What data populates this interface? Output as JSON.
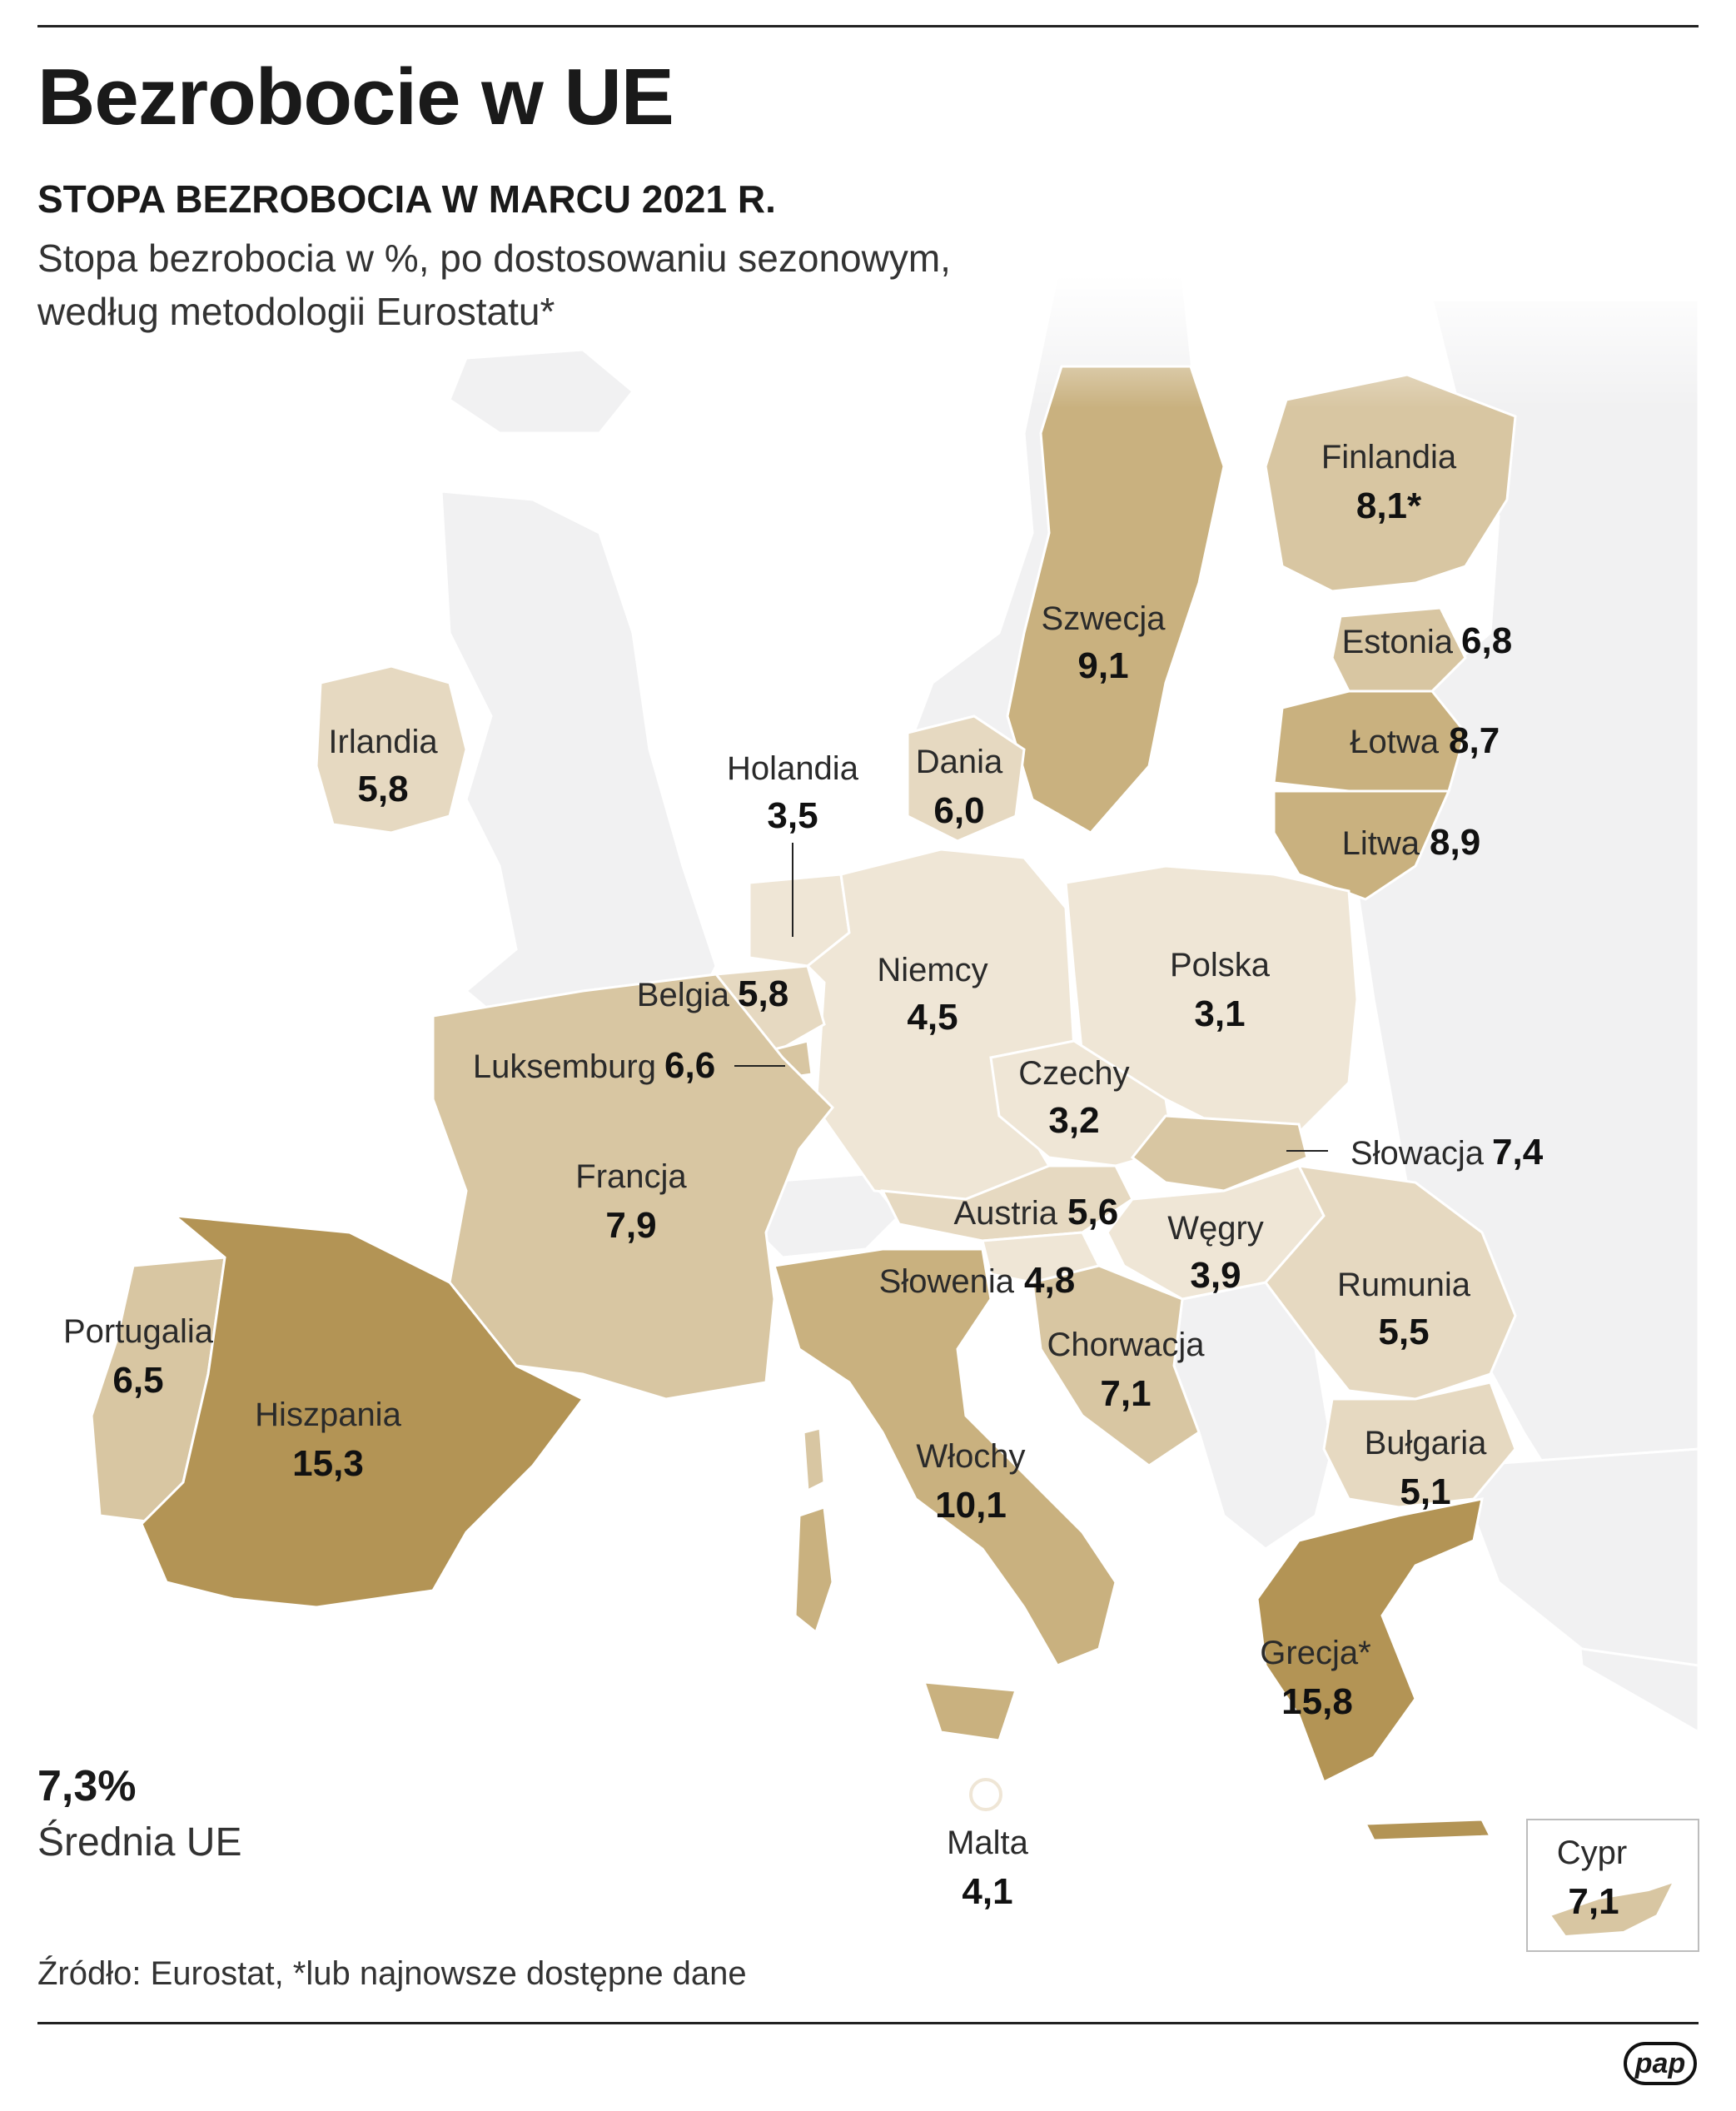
{
  "header": {
    "title": "Bezrobocie w UE",
    "subtitle": "STOPA BEZROBOCIA W MARCU 2021 R.",
    "description_line1": "Stopa bezrobocia w %, po dostosowaniu sezonowym,",
    "description_line2": "według metodologii Eurostatu*"
  },
  "average": {
    "value": "7,3%",
    "label": "Średnia UE"
  },
  "footer": {
    "source": "Źródło: Eurostat, *lub najnowsze dostępne dane",
    "logo_text": "pap"
  },
  "colors": {
    "lowest": "#efe6d6",
    "low": "#e6d9c1",
    "mid": "#d8c6a2",
    "high": "#c9b17f",
    "highest": "#b39455",
    "non_eu": "#f1f1f2",
    "border": "#ffffff"
  },
  "countries": [
    {
      "id": "finlandia",
      "name": "Finlandia",
      "value": "8,1*",
      "rate": 8.1
    },
    {
      "id": "szwecja",
      "name": "Szwecja",
      "value": "9,1",
      "rate": 9.1
    },
    {
      "id": "estonia",
      "name": "Estonia",
      "value": "6,8",
      "rate": 6.8
    },
    {
      "id": "lotwa",
      "name": "Łotwa",
      "value": "8,7",
      "rate": 8.7
    },
    {
      "id": "litwa",
      "name": "Litwa",
      "value": "8,9",
      "rate": 8.9
    },
    {
      "id": "irlandia",
      "name": "Irlandia",
      "value": "5,8",
      "rate": 5.8
    },
    {
      "id": "holandia",
      "name": "Holandia",
      "value": "3,5",
      "rate": 3.5
    },
    {
      "id": "dania",
      "name": "Dania",
      "value": "6,0",
      "rate": 6.0
    },
    {
      "id": "niemcy",
      "name": "Niemcy",
      "value": "4,5",
      "rate": 4.5
    },
    {
      "id": "polska",
      "name": "Polska",
      "value": "3,1",
      "rate": 3.1
    },
    {
      "id": "belgia",
      "name": "Belgia",
      "value": "5,8",
      "rate": 5.8
    },
    {
      "id": "luksemburg",
      "name": "Luksemburg",
      "value": "6,6",
      "rate": 6.6
    },
    {
      "id": "czechy",
      "name": "Czechy",
      "value": "3,2",
      "rate": 3.2
    },
    {
      "id": "slowacja",
      "name": "Słowacja",
      "value": "7,4",
      "rate": 7.4
    },
    {
      "id": "francja",
      "name": "Francja",
      "value": "7,9",
      "rate": 7.9
    },
    {
      "id": "austria",
      "name": "Austria",
      "value": "5,6",
      "rate": 5.6
    },
    {
      "id": "wegry",
      "name": "Węgry",
      "value": "3,9",
      "rate": 3.9
    },
    {
      "id": "slowenia",
      "name": "Słowenia",
      "value": "4,8",
      "rate": 4.8
    },
    {
      "id": "rumunia",
      "name": "Rumunia",
      "value": "5,5",
      "rate": 5.5
    },
    {
      "id": "portugalia",
      "name": "Portugalia",
      "value": "6,5",
      "rate": 6.5
    },
    {
      "id": "chorwacja",
      "name": "Chorwacja",
      "value": "7,1",
      "rate": 7.1
    },
    {
      "id": "hiszpania",
      "name": "Hiszpania",
      "value": "15,3",
      "rate": 15.3
    },
    {
      "id": "bulgaria",
      "name": "Bułgaria",
      "value": "5,1",
      "rate": 5.1
    },
    {
      "id": "wlochy",
      "name": "Włochy",
      "value": "10,1",
      "rate": 10.1
    },
    {
      "id": "grecja",
      "name": "Grecja*",
      "value": "15,8",
      "rate": 15.8
    },
    {
      "id": "malta",
      "name": "Malta",
      "value": "4,1",
      "rate": 4.1
    },
    {
      "id": "cypr",
      "name": "Cypr",
      "value": "7,1",
      "rate": 7.1
    }
  ]
}
